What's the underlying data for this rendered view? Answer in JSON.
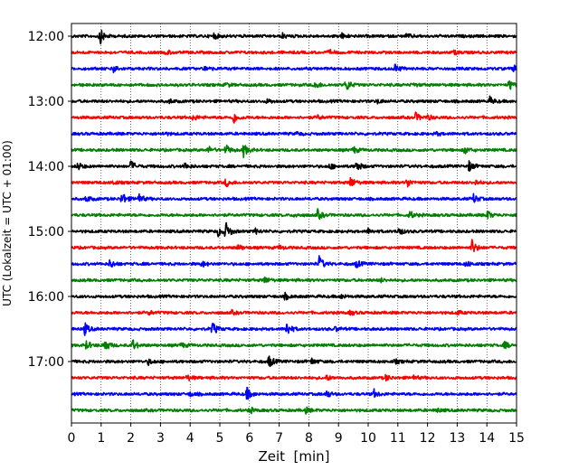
{
  "chart_data": {
    "type": "line",
    "title": "",
    "xlabel": "Zeit  [min]",
    "ylabel": "UTC (Lokalzeit = UTC + 01:00)",
    "xlim": [
      0,
      15
    ],
    "x_ticks": [
      0,
      1,
      2,
      3,
      4,
      5,
      6,
      7,
      8,
      9,
      10,
      11,
      12,
      13,
      14,
      15
    ],
    "x_grid": true,
    "y_grid": false,
    "rows_start": "12:00",
    "row_interval_min": 15,
    "y_ticks": [
      "12:00",
      "13:00",
      "14:00",
      "15:00",
      "16:00",
      "17:00"
    ],
    "colors": [
      "#000000",
      "#ff0000",
      "#0000ff",
      "#008000"
    ],
    "traces": [
      {
        "start": "12:00",
        "color": "#000000",
        "events": [
          [
            0.95,
            1.0
          ],
          [
            4.8,
            0.35
          ],
          [
            7.1,
            0.3
          ],
          [
            9.1,
            0.3
          ],
          [
            11.3,
            0.25
          ]
        ]
      },
      {
        "start": "12:15",
        "color": "#ff0000",
        "events": [
          [
            3.2,
            0.25
          ],
          [
            8.7,
            0.25
          ],
          [
            12.9,
            0.2
          ]
        ]
      },
      {
        "start": "12:30",
        "color": "#0000ff",
        "events": [
          [
            1.4,
            0.55
          ],
          [
            4.5,
            0.3
          ],
          [
            10.9,
            0.5
          ],
          [
            14.9,
            0.4
          ]
        ]
      },
      {
        "start": "12:45",
        "color": "#008000",
        "events": [
          [
            5.2,
            0.25
          ],
          [
            8.2,
            0.5
          ],
          [
            9.25,
            0.8
          ],
          [
            11.5,
            0.25
          ],
          [
            14.75,
            0.6
          ]
        ]
      },
      {
        "start": "13:00",
        "color": "#000000",
        "events": [
          [
            3.3,
            0.25
          ],
          [
            6.6,
            0.25
          ],
          [
            10.3,
            0.25
          ],
          [
            14.1,
            0.45
          ]
        ]
      },
      {
        "start": "13:15",
        "color": "#ff0000",
        "events": [
          [
            4.1,
            0.35
          ],
          [
            5.45,
            0.8
          ],
          [
            8.3,
            0.25
          ],
          [
            11.6,
            0.5
          ],
          [
            12.0,
            0.3
          ]
        ]
      },
      {
        "start": "13:30",
        "color": "#0000ff",
        "events": [
          [
            3.1,
            0.2
          ],
          [
            7.6,
            0.2
          ],
          [
            12.3,
            0.2
          ]
        ]
      },
      {
        "start": "13:45",
        "color": "#008000",
        "events": [
          [
            4.6,
            0.45
          ],
          [
            5.2,
            0.6
          ],
          [
            5.8,
            0.8
          ],
          [
            9.5,
            0.4
          ],
          [
            13.25,
            0.45
          ]
        ]
      },
      {
        "start": "14:00",
        "color": "#000000",
        "events": [
          [
            0.2,
            0.5
          ],
          [
            2.0,
            0.65
          ],
          [
            3.8,
            0.45
          ],
          [
            8.7,
            0.35
          ],
          [
            9.6,
            0.7
          ],
          [
            13.4,
            0.6
          ]
        ]
      },
      {
        "start": "14:15",
        "color": "#ff0000",
        "events": [
          [
            1.4,
            0.25
          ],
          [
            5.2,
            0.5
          ],
          [
            9.4,
            0.65
          ],
          [
            11.3,
            0.6
          ],
          [
            13.6,
            0.3
          ]
        ]
      },
      {
        "start": "14:30",
        "color": "#0000ff",
        "events": [
          [
            0.5,
            0.4
          ],
          [
            1.7,
            0.85
          ],
          [
            2.25,
            0.65
          ],
          [
            13.55,
            0.55
          ]
        ]
      },
      {
        "start": "14:45",
        "color": "#008000",
        "events": [
          [
            7.5,
            0.25
          ],
          [
            8.3,
            0.6
          ],
          [
            11.4,
            0.45
          ],
          [
            14.0,
            0.55
          ]
        ]
      },
      {
        "start": "15:00",
        "color": "#000000",
        "events": [
          [
            4.95,
            0.55
          ],
          [
            5.2,
            1.0
          ],
          [
            6.2,
            0.3
          ],
          [
            10.0,
            0.3
          ],
          [
            11.0,
            0.6
          ]
        ]
      },
      {
        "start": "15:15",
        "color": "#ff0000",
        "events": [
          [
            5.6,
            0.4
          ],
          [
            7.0,
            0.25
          ],
          [
            13.5,
            0.9
          ]
        ]
      },
      {
        "start": "15:30",
        "color": "#0000ff",
        "events": [
          [
            1.3,
            0.55
          ],
          [
            4.4,
            0.35
          ],
          [
            8.35,
            0.9
          ],
          [
            9.6,
            0.45
          ],
          [
            13.3,
            0.35
          ]
        ]
      },
      {
        "start": "15:45",
        "color": "#008000",
        "events": [
          [
            6.5,
            0.4
          ],
          [
            10.4,
            0.25
          ]
        ]
      },
      {
        "start": "16:00",
        "color": "#000000",
        "events": [
          [
            7.2,
            0.35
          ],
          [
            9.1,
            0.25
          ]
        ]
      },
      {
        "start": "16:15",
        "color": "#ff0000",
        "events": [
          [
            2.6,
            0.25
          ],
          [
            5.4,
            0.2
          ],
          [
            9.4,
            0.25
          ],
          [
            13.0,
            0.25
          ]
        ]
      },
      {
        "start": "16:30",
        "color": "#0000ff",
        "events": [
          [
            0.45,
            0.7
          ],
          [
            4.75,
            0.8
          ],
          [
            7.25,
            0.9
          ],
          [
            8.9,
            0.25
          ]
        ]
      },
      {
        "start": "16:45",
        "color": "#008000",
        "events": [
          [
            0.5,
            0.5
          ],
          [
            1.1,
            0.9
          ],
          [
            2.05,
            0.75
          ],
          [
            3.7,
            0.3
          ],
          [
            14.6,
            0.4
          ]
        ]
      },
      {
        "start": "17:00",
        "color": "#000000",
        "events": [
          [
            2.6,
            0.35
          ],
          [
            6.65,
            0.8
          ],
          [
            8.1,
            0.35
          ],
          [
            10.9,
            0.25
          ]
        ]
      },
      {
        "start": "17:15",
        "color": "#ff0000",
        "events": [
          [
            3.9,
            0.35
          ],
          [
            8.6,
            0.3
          ],
          [
            10.6,
            0.35
          ],
          [
            11.5,
            0.3
          ]
        ]
      },
      {
        "start": "17:30",
        "color": "#0000ff",
        "events": [
          [
            4.0,
            0.25
          ],
          [
            5.9,
            0.8
          ],
          [
            8.6,
            0.4
          ],
          [
            10.2,
            0.45
          ]
        ]
      },
      {
        "start": "17:45",
        "color": "#008000",
        "events": [
          [
            6.0,
            0.35
          ],
          [
            7.9,
            0.3
          ],
          [
            12.3,
            0.25
          ]
        ]
      }
    ]
  }
}
